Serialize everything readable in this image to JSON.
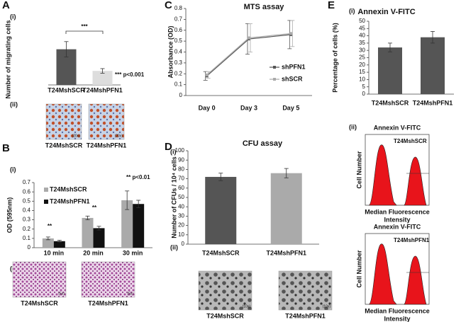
{
  "chart_data": [
    {
      "type": "bar",
      "categories": [
        "T24MshSCR",
        "T24MshPFN1"
      ],
      "values": [
        140,
        55
      ],
      "errors": [
        30,
        9
      ],
      "colors": [
        "#555555",
        "#dddddd"
      ],
      "ylim": [
        0,
        200
      ],
      "ylabel": "Number of migrating cells",
      "annotations": [
        "***",
        "*** p<0.001"
      ]
    },
    {
      "type": "grouped-bar",
      "categories": [
        "10 min",
        "20 min",
        "30 min"
      ],
      "series": [
        {
          "name": "T24MshSCR",
          "color": "#aaaaaa",
          "values": [
            0.1,
            0.32,
            0.51
          ],
          "errors": [
            0.015,
            0.02,
            0.1
          ]
        },
        {
          "name": "T24MshPFN1",
          "color": "#111111",
          "values": [
            0.07,
            0.21,
            0.47
          ],
          "errors": [
            0.01,
            0.02,
            0.04
          ]
        }
      ],
      "ylim": [
        0,
        0.7
      ],
      "yticks": [
        0,
        0.1,
        0.2,
        0.3,
        0.4,
        0.5,
        0.6,
        0.7
      ],
      "ylabel": "OD (595nm)",
      "annotations": [
        "**",
        "**",
        "** p<0.01"
      ]
    },
    {
      "type": "line",
      "title": "MTS assay",
      "categories": [
        "Day 0",
        "Day 3",
        "Day 5"
      ],
      "series": [
        {
          "name": "shPFN1",
          "color": "#555555",
          "values": [
            0.18,
            0.52,
            0.56
          ],
          "errors": [
            0.04,
            0.14,
            0.13
          ]
        },
        {
          "name": "shSCR",
          "color": "#aaaaaa",
          "values": [
            0.19,
            0.53,
            0.57
          ],
          "errors": [
            0.03,
            0.13,
            0.12
          ]
        }
      ],
      "ylim": [
        0,
        0.8
      ],
      "yticks": [
        0,
        0.1,
        0.2,
        0.3,
        0.4,
        0.5,
        0.6,
        0.7,
        0.8
      ],
      "ylabel": "Absorbance (OD)"
    },
    {
      "type": "bar",
      "title": "CFU assay",
      "categories": [
        "T24MshSCR",
        "T24MshPFN1"
      ],
      "values": [
        72,
        76
      ],
      "errors": [
        4,
        5
      ],
      "colors": [
        "#555555",
        "#aaaaaa"
      ],
      "ylim": [
        0,
        100
      ],
      "yticks": [
        0,
        10,
        20,
        30,
        40,
        50,
        60,
        70,
        80,
        90,
        100
      ],
      "ylabel": "Number of CFUs / 10⁴ cells"
    },
    {
      "type": "bar",
      "title": "Annexin V-FITC",
      "categories": [
        "T24MshSCR",
        "T24MshPFN1"
      ],
      "values": [
        32,
        39
      ],
      "errors": [
        3,
        4
      ],
      "colors": [
        "#555555",
        "#555555"
      ],
      "ylim": [
        0,
        50
      ],
      "yticks": [
        0,
        5,
        10,
        15,
        20,
        25,
        30,
        35,
        40,
        45,
        50
      ],
      "ylabel": "Percentage of cells (%)"
    }
  ],
  "figure": {
    "letters": [
      "A",
      "B",
      "C",
      "D",
      "E"
    ],
    "parts": [
      "(i)",
      "(ii)",
      "(i)",
      "(ii)",
      "(i)",
      "(ii)",
      "(i)",
      "(ii)"
    ],
    "images": [
      {
        "caption": "T24MshSCR",
        "magnification": "(20x)"
      },
      {
        "caption": "T24MshPFN1",
        "magnification": "(20x)"
      },
      {
        "caption": "T24MshSCR",
        "magnification": "(5x)"
      },
      {
        "caption": "T24MshPFN1",
        "magnification": "(5x)"
      },
      {
        "caption": "T24MshSCR",
        "magnification": "(10x)"
      },
      {
        "caption": "T24MshPFN1",
        "magnification": "(10x)"
      }
    ],
    "flow": [
      {
        "title": "Annexin V-FITC",
        "sample": "T24MshSCR",
        "y_label": "Cell Number",
        "x_label": [
          "Median Fluorescence",
          "Intensity"
        ]
      },
      {
        "title": "Annexin V-FITC",
        "sample": "T24MshPFN1",
        "y_label": "Cell Number",
        "x_label": [
          "Median Fluorescence",
          "Intensity"
        ]
      }
    ]
  }
}
